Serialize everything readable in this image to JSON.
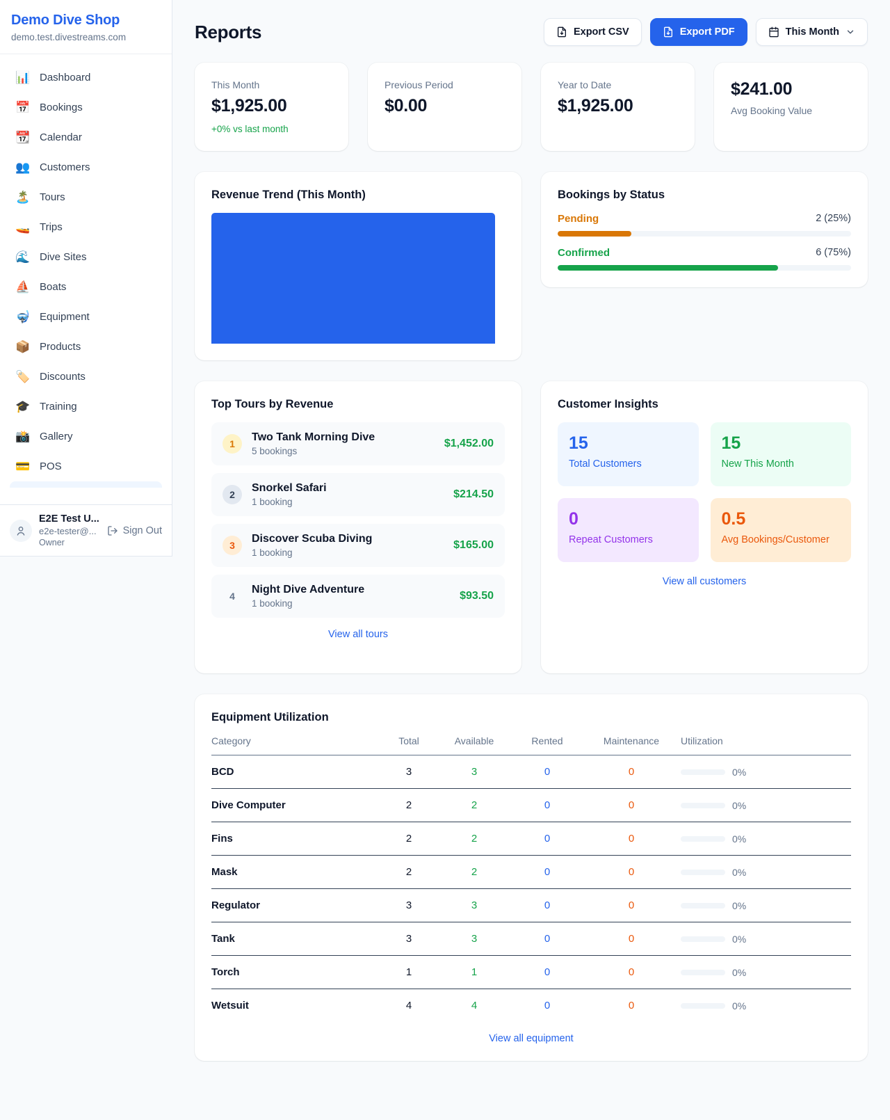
{
  "colors": {
    "accent": "#2563eb",
    "green": "#16a34a",
    "orange": "#d97706",
    "deep_orange": "#ea580c",
    "purple": "#9333ea",
    "gray": "#64748b"
  },
  "sidebar": {
    "shop_name": "Demo Dive Shop",
    "shop_domain": "demo.test.divestreams.com",
    "items": [
      {
        "icon": "📊",
        "label": "Dashboard",
        "slug": "dashboard"
      },
      {
        "icon": "📅",
        "label": "Bookings",
        "slug": "bookings"
      },
      {
        "icon": "📆",
        "label": "Calendar",
        "slug": "calendar"
      },
      {
        "icon": "👥",
        "label": "Customers",
        "slug": "customers"
      },
      {
        "icon": "🏝️",
        "label": "Tours",
        "slug": "tours"
      },
      {
        "icon": "🚤",
        "label": "Trips",
        "slug": "trips"
      },
      {
        "icon": "🌊",
        "label": "Dive Sites",
        "slug": "dive-sites"
      },
      {
        "icon": "⛵",
        "label": "Boats",
        "slug": "boats"
      },
      {
        "icon": "🤿",
        "label": "Equipment",
        "slug": "equipment"
      },
      {
        "icon": "📦",
        "label": "Products",
        "slug": "products"
      },
      {
        "icon": "🏷️",
        "label": "Discounts",
        "slug": "discounts"
      },
      {
        "icon": "🎓",
        "label": "Training",
        "slug": "training"
      },
      {
        "icon": "📸",
        "label": "Gallery",
        "slug": "gallery"
      },
      {
        "icon": "💳",
        "label": "POS",
        "slug": "pos"
      }
    ],
    "user": {
      "name": "E2E Test U...",
      "email": "e2e-tester@...",
      "role": "Owner",
      "sign_out_label": "Sign Out"
    }
  },
  "header": {
    "title": "Reports",
    "export_csv_label": "Export CSV",
    "export_pdf_label": "Export PDF",
    "period_label": "This Month"
  },
  "stats": {
    "this_month": {
      "label": "This Month",
      "value": "$1,925.00",
      "delta": "+0% vs last month"
    },
    "previous_period": {
      "label": "Previous Period",
      "value": "$0.00"
    },
    "year_to_date": {
      "label": "Year to Date",
      "value": "$1,925.00"
    },
    "avg_booking": {
      "value": "$241.00",
      "label": "Avg Booking Value"
    }
  },
  "revenue_trend": {
    "title": "Revenue Trend (This Month)",
    "chart_data": {
      "type": "bar",
      "categories": [
        "This Month"
      ],
      "values": [
        1925
      ],
      "bar_color": "#2563eb",
      "note": "single full-width bar, no axes shown"
    }
  },
  "bookings_by_status": {
    "title": "Bookings by Status",
    "rows": [
      {
        "label": "Pending",
        "value": "2 (25%)",
        "pct": 25,
        "color": "#d97706"
      },
      {
        "label": "Confirmed",
        "value": "6 (75%)",
        "pct": 75,
        "color": "#16a34a"
      }
    ]
  },
  "top_tours": {
    "title": "Top Tours by Revenue",
    "view_all": "View all tours",
    "rows": [
      {
        "rank": "1",
        "name": "Two Tank Morning Dive",
        "bookings": "5 bookings",
        "revenue": "$1,452.00",
        "badge_bg": "#fef3c7",
        "badge_color": "#d97706"
      },
      {
        "rank": "2",
        "name": "Snorkel Safari",
        "bookings": "1 booking",
        "revenue": "$214.50",
        "badge_bg": "#e2e8f0",
        "badge_color": "#334155"
      },
      {
        "rank": "3",
        "name": "Discover Scuba Diving",
        "bookings": "1 booking",
        "revenue": "$165.00",
        "badge_bg": "#ffedd5",
        "badge_color": "#ea580c"
      },
      {
        "rank": "4",
        "name": "Night Dive Adventure",
        "bookings": "1 booking",
        "revenue": "$93.50",
        "badge_bg": "transparent",
        "badge_color": "#64748b"
      }
    ]
  },
  "customer_insights": {
    "title": "Customer Insights",
    "view_all": "View all customers",
    "tiles": [
      {
        "value": "15",
        "label": "Total Customers",
        "color": "#2563eb",
        "bg": "#eff6ff"
      },
      {
        "value": "15",
        "label": "New This Month",
        "color": "#16a34a",
        "bg": "#ecfdf5"
      },
      {
        "value": "0",
        "label": "Repeat Customers",
        "color": "#9333ea",
        "bg": "#f3e8ff"
      },
      {
        "value": "0.5",
        "label": "Avg Bookings/Customer",
        "color": "#ea580c",
        "bg": "#ffedd5"
      }
    ]
  },
  "equipment": {
    "title": "Equipment Utilization",
    "view_all": "View all equipment",
    "headers": [
      "Category",
      "Total",
      "Available",
      "Rented",
      "Maintenance",
      "Utilization"
    ],
    "rows": [
      {
        "category": "BCD",
        "total": "3",
        "available": "3",
        "rented": "0",
        "maintenance": "0",
        "utilization": "0%",
        "util_pct": 0
      },
      {
        "category": "Dive Computer",
        "total": "2",
        "available": "2",
        "rented": "0",
        "maintenance": "0",
        "utilization": "0%",
        "util_pct": 0
      },
      {
        "category": "Fins",
        "total": "2",
        "available": "2",
        "rented": "0",
        "maintenance": "0",
        "utilization": "0%",
        "util_pct": 0
      },
      {
        "category": "Mask",
        "total": "2",
        "available": "2",
        "rented": "0",
        "maintenance": "0",
        "utilization": "0%",
        "util_pct": 0
      },
      {
        "category": "Regulator",
        "total": "3",
        "available": "3",
        "rented": "0",
        "maintenance": "0",
        "utilization": "0%",
        "util_pct": 0
      },
      {
        "category": "Tank",
        "total": "3",
        "available": "3",
        "rented": "0",
        "maintenance": "0",
        "utilization": "0%",
        "util_pct": 0
      },
      {
        "category": "Torch",
        "total": "1",
        "available": "1",
        "rented": "0",
        "maintenance": "0",
        "utilization": "0%",
        "util_pct": 0
      },
      {
        "category": "Wetsuit",
        "total": "4",
        "available": "4",
        "rented": "0",
        "maintenance": "0",
        "utilization": "0%",
        "util_pct": 0
      }
    ]
  }
}
